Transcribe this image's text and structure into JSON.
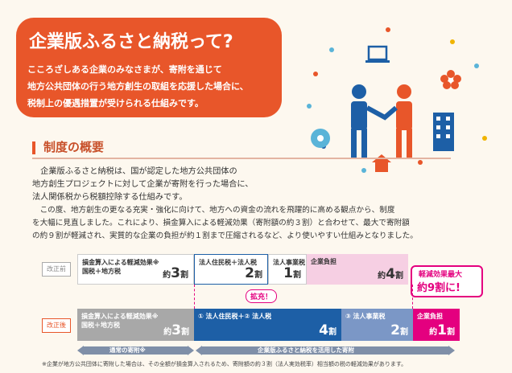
{
  "hero": {
    "title": "企業版ふるさと納税って?",
    "lines": [
      "こころざしある企業のみなさまが、寄附を通じて",
      "地方公共団体の行う地方創生の取組を応援した場合に、",
      "税制上の優遇措置が受けられる仕組みです。"
    ]
  },
  "section": {
    "title": "制度の概要",
    "paragraph_lines": [
      "　企業版ふるさと納税は、国が認定した地方公共団体の",
      "地方創生プロジェクトに対して企業が寄附を行った場合に、",
      "法人関係税から税額控除する仕組みです。",
      "　この度、地方創生の更なる充実・強化に向けて、地方への資金の流れを飛躍的に高める観点から、制度",
      "を大幅に見直しました。これにより、損金算入による軽減効果（寄附額の約３割）と合わせて、最大で寄附額",
      "の約９割が軽減され、実質的な企業の負担が約１割まで圧縮されるなど、より使いやすい仕組みとなりました。"
    ]
  },
  "before": {
    "label": "改正前",
    "cells": [
      {
        "line1": "損金算入による軽減効果※",
        "line2": "国税＋地方税",
        "prefix": "約",
        "num": "3",
        "suffix": "割"
      },
      {
        "line1": "法人住民税＋法人税",
        "line2": "",
        "prefix": "",
        "num": "2",
        "suffix": "割"
      },
      {
        "line1": "法人事業税",
        "line2": "",
        "prefix": "",
        "num": "1",
        "suffix": "割"
      },
      {
        "line1": "企業負担",
        "line2": "",
        "prefix": "約",
        "num": "4",
        "suffix": "割"
      }
    ]
  },
  "after": {
    "label": "改正後",
    "expand": "拡充！",
    "cells": [
      {
        "line1": "損金算入による軽減効果※",
        "line2": "国税＋地方税",
        "prefix": "約",
        "num": "3",
        "suffix": "割"
      },
      {
        "line1": "① 法人住民税＋② 法人税",
        "line2": "",
        "prefix": "",
        "num": "4",
        "suffix": "割"
      },
      {
        "line1": "③ 法人事業税",
        "line2": "",
        "prefix": "",
        "num": "2",
        "suffix": "割"
      },
      {
        "line1": "企業負担",
        "line2": "",
        "prefix": "約",
        "num": "1",
        "suffix": "割"
      }
    ]
  },
  "callout": {
    "line1": "軽減効果最大",
    "line2": "約9割に!"
  },
  "arrows": {
    "left": "通常の寄附※",
    "right": "企業版ふるさと納税を活用した寄附"
  },
  "footnote": "※企業が地方公共団体に寄附した場合は、その全額が損金算入されるため、寄附額の約３割（法人実効税率）相当額の税の軽減効果があります。",
  "colors": {
    "orange": "#e8562a",
    "blue": "#1d5fa6",
    "lightblue": "#7b97c6",
    "pink": "#e4007f",
    "lightpink": "#f6cfe3",
    "gray": "#a8a8a8"
  }
}
